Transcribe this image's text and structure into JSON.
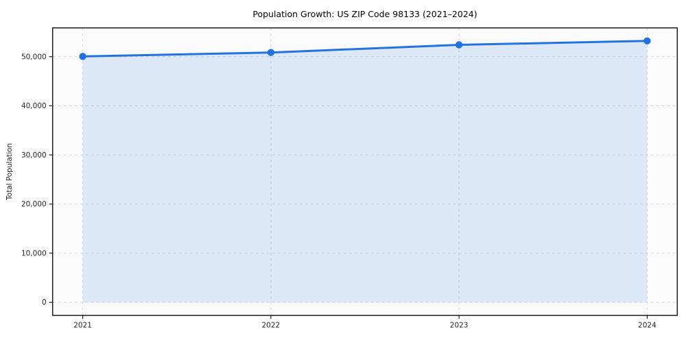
{
  "chart_data": {
    "type": "area",
    "title": "Population Growth: US ZIP Code 98133 (2021–2024)",
    "xlabel": "",
    "ylabel": "Total Population",
    "categories": [
      "2021",
      "2022",
      "2023",
      "2024"
    ],
    "x": [
      2021,
      2022,
      2023,
      2024
    ],
    "series": [
      {
        "name": "Total Population",
        "values": [
          50050,
          50850,
          52400,
          53200
        ]
      }
    ],
    "y_ticks": [
      0,
      10000,
      20000,
      30000,
      40000,
      50000
    ],
    "y_tick_labels": [
      "0",
      "10,000",
      "20,000",
      "30,000",
      "40,000",
      "50,000"
    ],
    "x_tick_labels": [
      "2021",
      "2022",
      "2023",
      "2024"
    ],
    "xlim": [
      2020.84,
      2024.16
    ],
    "ylim": [
      -2660,
      55860
    ],
    "grid": true,
    "grid_style": "dashed",
    "legend_position": "none",
    "area_baseline": 0,
    "colors": {
      "line": "#2172e2",
      "marker": "#2172e2",
      "fill": "#2172e2",
      "fill_opacity": "0.13",
      "grid": "#d9d9d9",
      "spine": "#1a1a1a",
      "tick_text": "#262626",
      "title_text": "#000000",
      "plot_bg": "#fafafa",
      "figure_bg": "#ffffff"
    }
  }
}
